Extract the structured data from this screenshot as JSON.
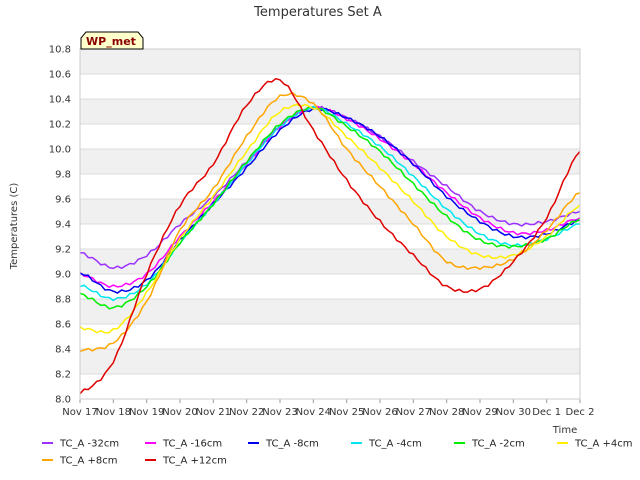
{
  "chart_data": {
    "type": "line",
    "title": "Temperatures Set A",
    "xlabel": "Time",
    "ylabel": "Temperatures (C)",
    "badge": "WP_met",
    "ylim": [
      8.0,
      10.8
    ],
    "yticks": [
      "8.0",
      "8.2",
      "8.4",
      "8.6",
      "8.8",
      "9.0",
      "9.2",
      "9.4",
      "9.6",
      "9.8",
      "10.0",
      "10.2",
      "10.4",
      "10.6",
      "10.8"
    ],
    "xlim": [
      0,
      15
    ],
    "xticks": [
      "Nov 17",
      "Nov 18",
      "Nov 19",
      "Nov 20",
      "Nov 21",
      "Nov 22",
      "Nov 23",
      "Nov 24",
      "Nov 25",
      "Nov 26",
      "Nov 27",
      "Nov 28",
      "Nov 29",
      "Nov 30",
      "Dec 1",
      "Dec 2"
    ],
    "x": [
      "Nov 17",
      "Nov 18",
      "Nov 19",
      "Nov 20",
      "Nov 21",
      "Nov 22",
      "Nov 23",
      "Nov 24",
      "Nov 25",
      "Nov 26",
      "Nov 27",
      "Nov 28",
      "Nov 29",
      "Nov 30",
      "Dec 1",
      "Dec 1 12:00"
    ],
    "grid": true,
    "legend_position": "bottom",
    "series": [
      {
        "name": "TC_A -32cm",
        "color": "#9b30ff",
        "values": [
          9.17,
          9.05,
          9.15,
          9.4,
          9.62,
          9.9,
          10.18,
          10.33,
          10.25,
          10.1,
          9.9,
          9.7,
          9.5,
          9.4,
          9.42,
          9.5
        ]
      },
      {
        "name": "TC_A -16cm",
        "color": "#ff00ff",
        "values": [
          9.0,
          8.9,
          9.0,
          9.3,
          9.58,
          9.88,
          10.18,
          10.33,
          10.24,
          10.08,
          9.88,
          9.65,
          9.45,
          9.33,
          9.35,
          9.45
        ]
      },
      {
        "name": "TC_A -8cm",
        "color": "#0000ee",
        "values": [
          9.01,
          8.86,
          8.95,
          9.27,
          9.56,
          9.85,
          10.15,
          10.32,
          10.25,
          10.1,
          9.88,
          9.62,
          9.42,
          9.3,
          9.32,
          9.43
        ]
      },
      {
        "name": "TC_A -4cm",
        "color": "#00e5ee",
        "values": [
          8.91,
          8.8,
          8.92,
          9.25,
          9.56,
          9.88,
          10.18,
          10.33,
          10.2,
          10.02,
          9.78,
          9.52,
          9.32,
          9.23,
          9.28,
          9.4
        ]
      },
      {
        "name": "TC_A -2cm",
        "color": "#00ee00",
        "values": [
          8.84,
          8.73,
          8.9,
          9.25,
          9.56,
          9.9,
          10.2,
          10.33,
          10.18,
          9.98,
          9.72,
          9.46,
          9.27,
          9.22,
          9.28,
          9.44
        ]
      },
      {
        "name": "TC_A +4cm",
        "color": "#ffee00",
        "values": [
          8.57,
          8.55,
          8.85,
          9.28,
          9.62,
          9.98,
          10.3,
          10.33,
          10.1,
          9.85,
          9.58,
          9.3,
          9.15,
          9.15,
          9.3,
          9.55
        ]
      },
      {
        "name": "TC_A +8cm",
        "color": "#ffa500",
        "values": [
          8.39,
          8.45,
          8.78,
          9.35,
          9.68,
          10.1,
          10.42,
          10.36,
          10.0,
          9.7,
          9.4,
          9.1,
          9.05,
          9.12,
          9.35,
          9.65
        ]
      },
      {
        "name": "TC_A +12cm",
        "color": "#e00000",
        "values": [
          8.05,
          8.3,
          9.0,
          9.55,
          9.88,
          10.35,
          10.55,
          10.15,
          9.75,
          9.42,
          9.15,
          8.9,
          8.88,
          9.1,
          9.45,
          9.98
        ]
      }
    ]
  }
}
